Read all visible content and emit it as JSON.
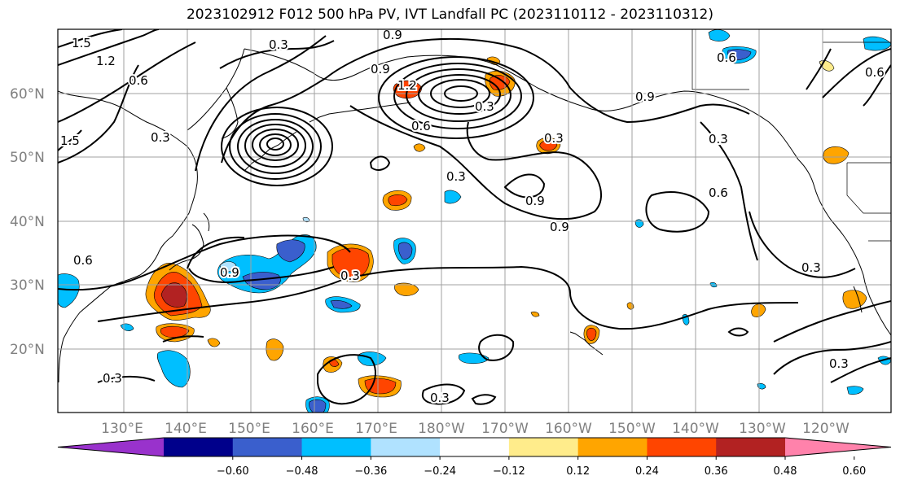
{
  "title": "2023102912 F012 500 hPa PV, IVT Landfall PC (2023110112 - 2023110312)",
  "map": {
    "lat_labels": [
      "60°N",
      "50°N",
      "40°N",
      "30°N",
      "20°N"
    ],
    "lon_labels": [
      "130°E",
      "140°E",
      "150°E",
      "160°E",
      "170°E",
      "180°W",
      "170°W",
      "160°W",
      "150°W",
      "140°W",
      "130°W",
      "120°W"
    ],
    "contour_labels": [
      "1.5",
      "1.2",
      "0.6",
      "0.3",
      "0.9",
      "1.2",
      "0.9",
      "0.3",
      "0.6",
      "0.6",
      "1.5",
      "0.3",
      "0.6",
      "0.3",
      "0.9",
      "0.3",
      "0.9",
      "0.9",
      "0.6",
      "0.3",
      "0.9",
      "0.3",
      "0.3",
      "0.6",
      "0.3",
      "0.3",
      "0.3"
    ],
    "colors": {
      "ocean_bg": "#ffffff",
      "grid": "#a0a0a0",
      "coast": "#000000",
      "contour": "#000000"
    }
  },
  "colorbar": {
    "colors": [
      "#9932cc",
      "#00008b",
      "#3a5fcd",
      "#00bfff",
      "#b0e2ff",
      "#ffffff",
      "#ffec8b",
      "#ffa500",
      "#ff4500",
      "#b22222",
      "#ff82ab"
    ],
    "tick_labels": [
      "−0.60",
      "−0.48",
      "−0.36",
      "−0.24",
      "−0.12",
      "0.12",
      "0.24",
      "0.36",
      "0.48",
      "0.60"
    ]
  }
}
